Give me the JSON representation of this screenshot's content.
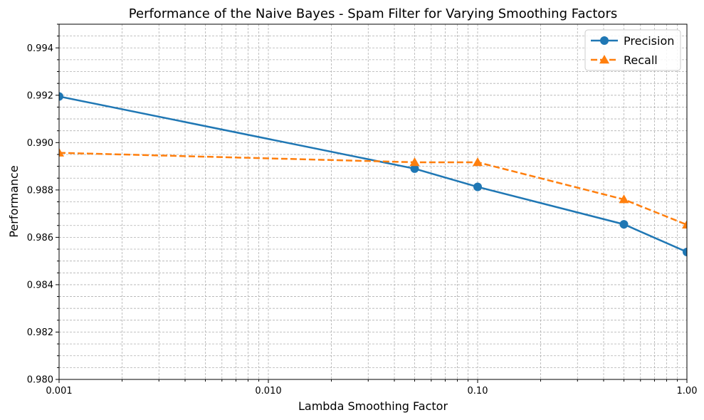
{
  "chart_data": {
    "type": "line",
    "title": "Performance of the Naive Bayes - Spam Filter for Varying Smoothing Factors",
    "xlabel": "Lambda Smoothing Factor",
    "ylabel": "Performance",
    "xscale": "log",
    "xlim": [
      0.001,
      1.0
    ],
    "ylim": [
      0.98,
      0.995
    ],
    "x": [
      0.001,
      0.05,
      0.1,
      0.5,
      1.0
    ],
    "xticks": [
      {
        "value": 0.001,
        "label": "0.001"
      },
      {
        "value": 0.01,
        "label": "0.010"
      },
      {
        "value": 0.1,
        "label": "0.10"
      },
      {
        "value": 1.0,
        "label": "1.00"
      }
    ],
    "yticks": [
      {
        "value": 0.98,
        "label": "0.980"
      },
      {
        "value": 0.982,
        "label": "0.982"
      },
      {
        "value": 0.984,
        "label": "0.984"
      },
      {
        "value": 0.986,
        "label": "0.986"
      },
      {
        "value": 0.988,
        "label": "0.988"
      },
      {
        "value": 0.99,
        "label": "0.990"
      },
      {
        "value": 0.992,
        "label": "0.992"
      },
      {
        "value": 0.994,
        "label": "0.994"
      }
    ],
    "series": [
      {
        "name": "Precision",
        "values": [
          0.99195,
          0.9889,
          0.98813,
          0.98655,
          0.98538
        ],
        "color": "#1f77b4",
        "marker": "circle",
        "linestyle": "solid"
      },
      {
        "name": "Recall",
        "values": [
          0.98957,
          0.98917,
          0.98917,
          0.9876,
          0.98653
        ],
        "color": "#ff7f0e",
        "marker": "triangle",
        "linestyle": "dashed"
      }
    ],
    "grid": true,
    "legend_position": "top-right"
  }
}
